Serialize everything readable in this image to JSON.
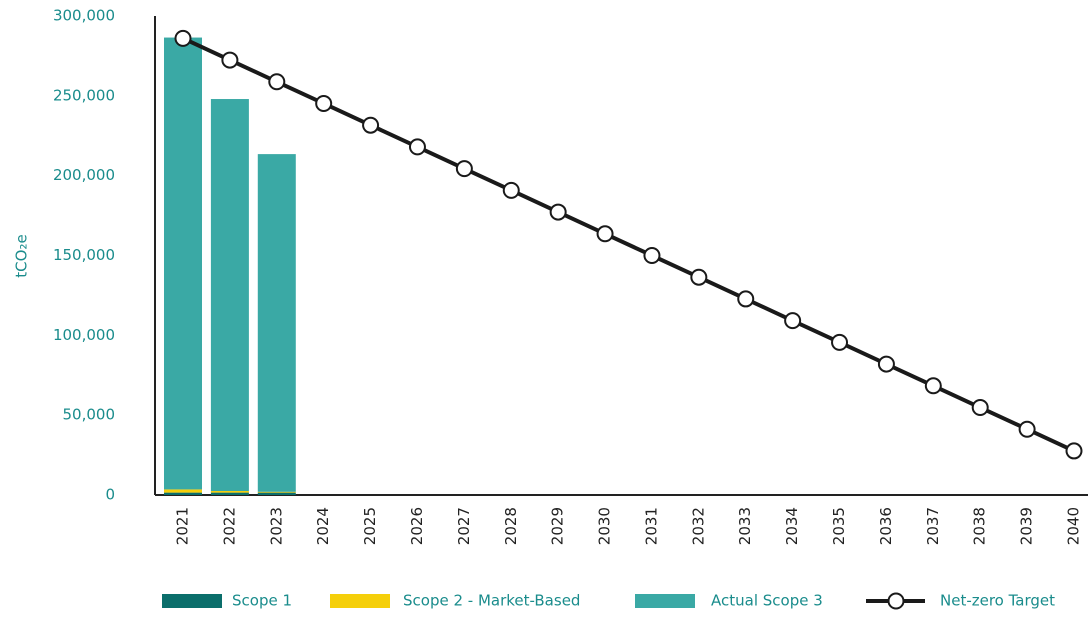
{
  "chart_data": {
    "type": "bar",
    "stacked": true,
    "y_label": "tCO₂e",
    "categories": [
      "2021",
      "2022",
      "2023",
      "2024",
      "2025",
      "2026",
      "2027",
      "2028",
      "2029",
      "2030",
      "2031",
      "2032",
      "2033",
      "2034",
      "2035",
      "2036",
      "2037",
      "2038",
      "2039",
      "2040"
    ],
    "series": [
      {
        "name": "Scope 1",
        "type": "bar",
        "color": "#0b6e6b",
        "values": [
          1500,
          1500,
          1500,
          null,
          null,
          null,
          null,
          null,
          null,
          null,
          null,
          null,
          null,
          null,
          null,
          null,
          null,
          null,
          null,
          null
        ]
      },
      {
        "name": "Scope 2 - Market-Based",
        "type": "bar",
        "color": "#f5cf0a",
        "values": [
          2000,
          1000,
          500,
          null,
          null,
          null,
          null,
          null,
          null,
          null,
          null,
          null,
          null,
          null,
          null,
          null,
          null,
          null,
          null,
          null
        ]
      },
      {
        "name": "Actual Scope 3",
        "type": "bar",
        "color": "#3aa9a5",
        "values": [
          283000,
          245500,
          211500,
          null,
          null,
          null,
          null,
          null,
          null,
          null,
          null,
          null,
          null,
          null,
          null,
          null,
          null,
          null,
          null,
          null
        ]
      },
      {
        "name": "Net-zero Target",
        "type": "line",
        "color": "#1a1a1a",
        "values": [
          286000,
          272400,
          258800,
          245200,
          231600,
          218000,
          204400,
          190800,
          177200,
          163600,
          150000,
          136400,
          122800,
          109200,
          95600,
          82000,
          68400,
          54800,
          41200,
          27600
        ]
      }
    ],
    "ylim": [
      0,
      300000
    ],
    "yticks": [
      {
        "value": 0,
        "label": "0"
      },
      {
        "value": 50000,
        "label": "50,000"
      },
      {
        "value": 100000,
        "label": "100,000"
      },
      {
        "value": 150000,
        "label": "150,000"
      },
      {
        "value": 200000,
        "label": "200,000"
      },
      {
        "value": 250000,
        "label": "250,000"
      },
      {
        "value": 300000,
        "label": "300,000"
      }
    ],
    "legend": "bottom"
  }
}
